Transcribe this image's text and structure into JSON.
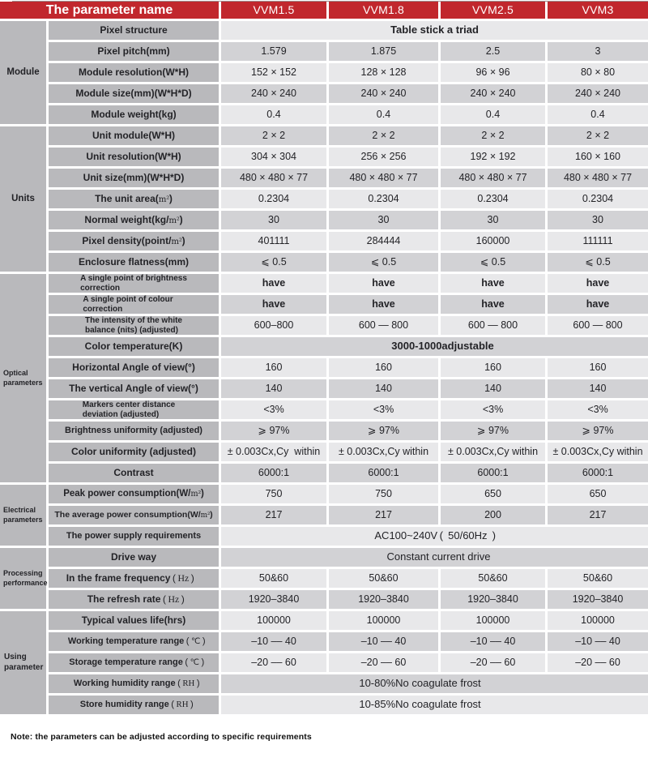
{
  "title": "LED display module specification table",
  "colors": {
    "accent_red": "#c1272d",
    "row_light": "#e8e8ea",
    "row_medium": "#d2d2d5",
    "name_column_gray": "#b9b9bc",
    "header_text": "#ffffff",
    "body_text": "#232327"
  },
  "header": {
    "parameter_column_label": "The parameter name",
    "models": [
      "VVM1.5",
      "VVM1.8",
      "VVM2.5",
      "VVM3"
    ]
  },
  "groups": [
    {
      "label": "Module",
      "first_row": 1,
      "last_row": 5
    },
    {
      "label": "Units",
      "first_row": 6,
      "last_row": 12
    },
    {
      "label": "Optical parameters",
      "first_row": 13,
      "last_row": 22
    },
    {
      "label": "Electrical parameters",
      "first_row": 23,
      "last_row": 25
    },
    {
      "label": "Processing performance",
      "first_row": 26,
      "last_row": 28
    },
    {
      "label": "Using parameter",
      "first_row": 29,
      "last_row": 33
    }
  ],
  "rows": [
    {
      "label": "Pixel structure",
      "span": "Table stick a triad",
      "span_bold": true
    },
    {
      "label": "Pixel pitch(mm)",
      "cells": [
        "1.579",
        "1.875",
        "2.5",
        "3"
      ]
    },
    {
      "label": "Module resolution(W*H)",
      "cells": [
        "152 × 152",
        "128 × 128",
        "96 × 96",
        "80 × 80"
      ]
    },
    {
      "label": "Module size(mm)(W*H*D)",
      "cells": [
        "240 × 240",
        "240 × 240",
        "240 × 240",
        "240 × 240"
      ]
    },
    {
      "label": "Module weight(kg)",
      "cells": [
        "0.4",
        "0.4",
        "0.4",
        "0.4"
      ]
    },
    {
      "label": "Unit module(W*H)",
      "cells": [
        "2 × 2",
        "2 × 2",
        "2 × 2",
        "2 × 2"
      ]
    },
    {
      "label": "Unit resolution(W*H)",
      "cells": [
        "304 × 304",
        "256 × 256",
        "192 × 192",
        "160 × 160"
      ]
    },
    {
      "label": "Unit size(mm)(W*H*D)",
      "cells": [
        "480 × 480 × 77",
        "480 × 480 × 77",
        "480 × 480 × 77",
        "480 × 480 × 77"
      ]
    },
    {
      "label": "The unit area(㎡)",
      "cells": [
        "0.2304",
        "0.2304",
        "0.2304",
        "0.2304"
      ]
    },
    {
      "label": "Normal weight(kg/㎡)",
      "cells": [
        "30",
        "30",
        "30",
        "30"
      ]
    },
    {
      "label": "Pixel density(point/㎡)",
      "cells": [
        "401111",
        "284444",
        "160000",
        "111111"
      ]
    },
    {
      "label": "Enclosure flatness(mm)",
      "cells": [
        "⩽ 0.5",
        "⩽ 0.5",
        "⩽ 0.5",
        "⩽ 0.5"
      ]
    },
    {
      "label": "A single point of brightness correction",
      "label_lines": [
        "A single point of brightness",
        "correction"
      ],
      "cells": [
        "have",
        "have",
        "have",
        "have"
      ],
      "cells_bold": true
    },
    {
      "label": "A single point of colour correction",
      "label_lines": [
        "A single point of colour",
        "correction"
      ],
      "cells": [
        "have",
        "have",
        "have",
        "have"
      ],
      "cells_bold": true
    },
    {
      "label": "The intensity of the white balance (nits) (adjusted)",
      "label_lines": [
        "The intensity of the white",
        "balance (nits) (adjusted)"
      ],
      "cells": [
        "600–800",
        "600 — 800",
        "600 — 800",
        "600 — 800"
      ]
    },
    {
      "label": "Color temperature(K)",
      "span": "3000-1000adjustable",
      "span_bold": true
    },
    {
      "label": "Horizontal Angle of view(°)",
      "cells": [
        "160",
        "160",
        "160",
        "160"
      ]
    },
    {
      "label": "The vertical Angle of view(°)",
      "cells": [
        "140",
        "140",
        "140",
        "140"
      ]
    },
    {
      "label": "Markers center distance deviation (adjusted)",
      "label_lines": [
        "Markers center distance",
        "deviation (adjusted)"
      ],
      "cells": [
        "<3%",
        "<3%",
        "<3%",
        "<3%"
      ]
    },
    {
      "label": "Brightness uniformity (adjusted)",
      "cells": [
        "⩾ 97%",
        "⩾ 97%",
        "⩾ 97%",
        "⩾ 97%"
      ]
    },
    {
      "label": "Color uniformity (adjusted)",
      "cells": [
        "± 0.003Cx,Cy  within",
        "± 0.003Cx,Cy within",
        "± 0.003Cx,Cy within",
        "± 0.003Cx,Cy within"
      ]
    },
    {
      "label": "Contrast",
      "cells": [
        "6000:1",
        "6000:1",
        "6000:1",
        "6000:1"
      ]
    },
    {
      "label": "Peak power consumption(W/㎡)",
      "cells": [
        "750",
        "750",
        "650",
        "650"
      ]
    },
    {
      "label": "The average power consumption(W/㎡)",
      "cells": [
        "217",
        "217",
        "200",
        "217"
      ]
    },
    {
      "label": "The power supply requirements",
      "span": "AC100~240V（ 50/60Hz ）"
    },
    {
      "label": "Drive way",
      "span": "Constant current drive"
    },
    {
      "label": "In the frame frequency（Hz）",
      "cells": [
        "50&60",
        "50&60",
        "50&60",
        "50&60"
      ]
    },
    {
      "label": "The refresh rate（Hz）",
      "cells": [
        "1920–3840",
        "1920–3840",
        "1920–3840",
        "1920–3840"
      ]
    },
    {
      "label": "Typical values life(hrs)",
      "cells": [
        "100000",
        "100000",
        "100000",
        "100000"
      ]
    },
    {
      "label": "Working temperature range（℃）",
      "cells": [
        "–10 –– 40",
        "–10 –– 40",
        "–10 –– 40",
        "–10 –– 40"
      ]
    },
    {
      "label": "Storage temperature range（℃）",
      "cells": [
        "–20 –– 60",
        "–20 –– 60",
        "–20 –– 60",
        "–20 –– 60"
      ]
    },
    {
      "label": "Working humidity range（RH）",
      "span": "10-80%No coagulate frost"
    },
    {
      "label": "Store humidity range（RH）",
      "span": "10-85%No coagulate frost"
    }
  ],
  "note": "Note: the parameters can be adjusted according to specific requirements"
}
